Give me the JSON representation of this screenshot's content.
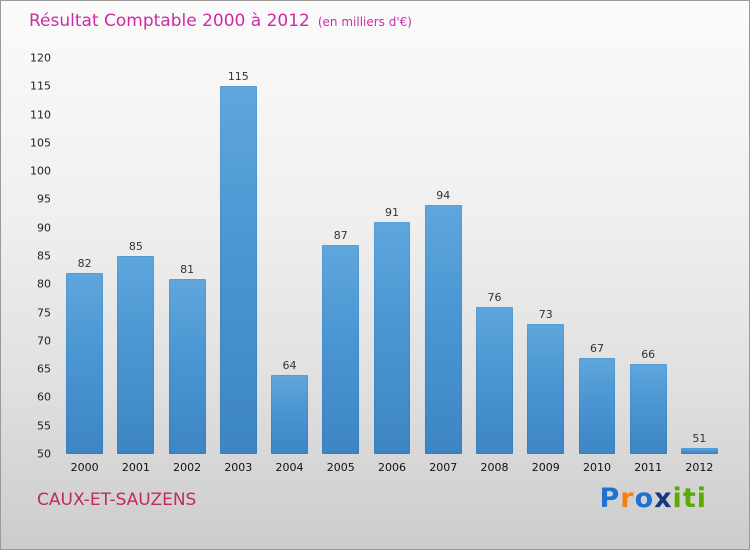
{
  "header": {
    "title": "Résultat Comptable 2000 à 2012",
    "subtitle": "(en milliers d'€)"
  },
  "footer": {
    "location": "CAUX-ET-SAUZENS",
    "logo": {
      "letters": [
        {
          "ch": "P",
          "color": "#1e73d2"
        },
        {
          "ch": "r",
          "color": "#f5820b"
        },
        {
          "ch": "o",
          "color": "#1e73d2"
        },
        {
          "ch": "x",
          "color": "#16387f"
        },
        {
          "ch": "i",
          "color": "#5aab00"
        },
        {
          "ch": "t",
          "color": "#5aab00"
        },
        {
          "ch": "i",
          "color": "#5aab00"
        }
      ]
    }
  },
  "colors": {
    "title": "#cb2ca6",
    "subtitle": "#cb2ca6",
    "location": "#c32765",
    "bar_top": "#5fa6dd",
    "bar_bottom": "#3d85c3",
    "value_label": "#333333"
  },
  "chart_data": {
    "type": "bar",
    "title": "Résultat Comptable 2000 à 2012",
    "subtitle": "(en milliers d'€)",
    "xlabel": "",
    "ylabel": "",
    "categories": [
      "2000",
      "2001",
      "2002",
      "2003",
      "2004",
      "2005",
      "2006",
      "2007",
      "2008",
      "2009",
      "2010",
      "2011",
      "2012"
    ],
    "values": [
      82,
      85,
      81,
      115,
      64,
      87,
      91,
      94,
      76,
      73,
      67,
      66,
      51
    ],
    "ylim": [
      50,
      120
    ],
    "ytick_step": 5,
    "grid": false,
    "legend": false,
    "bar_color": "#4a96d2"
  }
}
